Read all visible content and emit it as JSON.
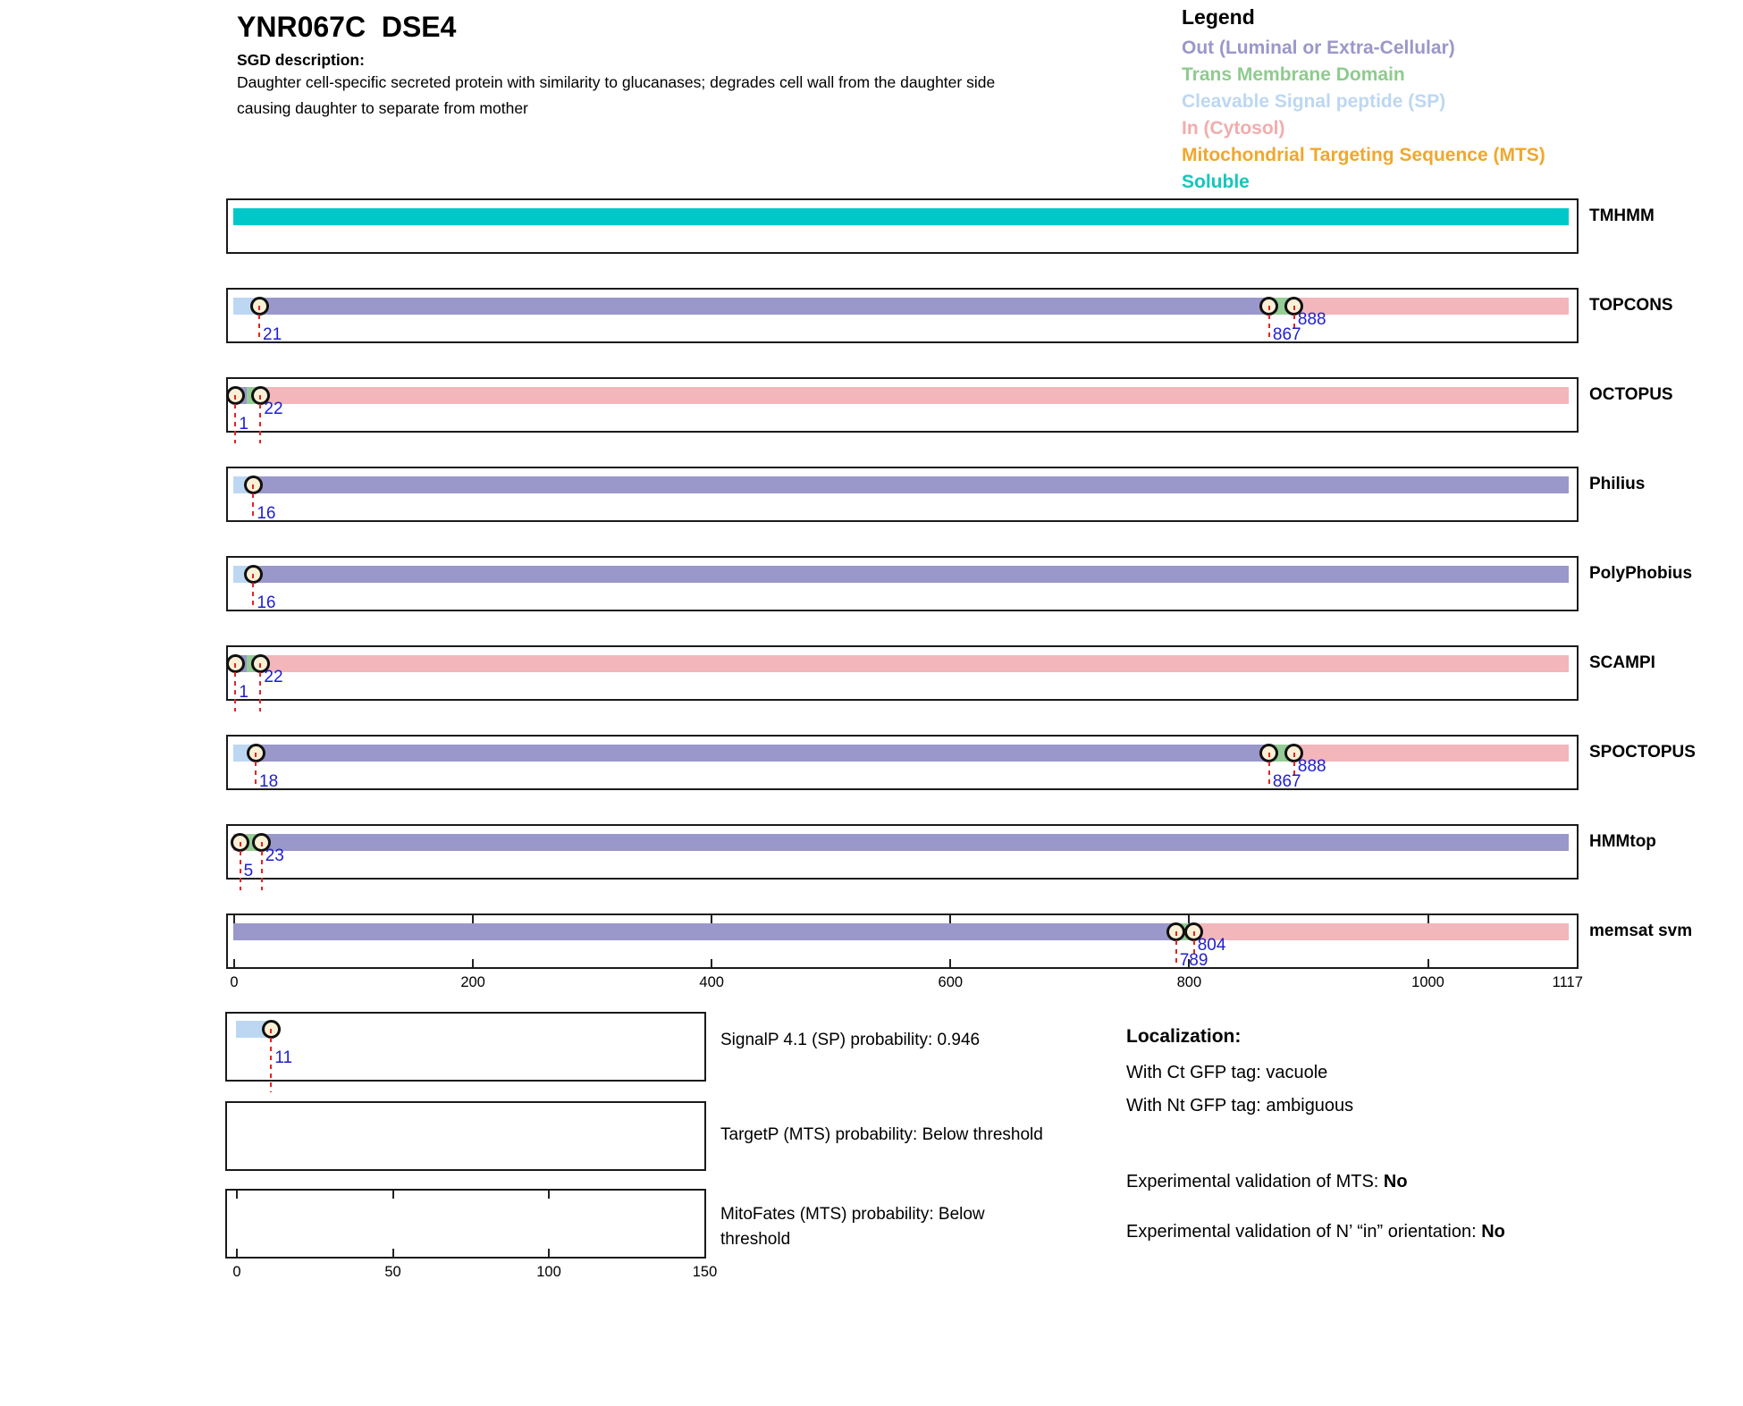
{
  "header": {
    "title": "YNR067C  DSE4",
    "sgd_label": "SGD description:",
    "description": "Daughter cell-specific secreted protein with similarity to glucanases; degrades cell wall from the daughter side causing daughter to separate from mother"
  },
  "legend": {
    "title": "Legend",
    "items": [
      {
        "key": "out",
        "label": "Out (Luminal or Extra-Cellular)",
        "color": "#9A97CB"
      },
      {
        "key": "tm",
        "label": "Trans Membrane Domain",
        "color": "#8FCB8F"
      },
      {
        "key": "sp",
        "label": "Cleavable Signal peptide (SP)",
        "color": "#BDD7F2"
      },
      {
        "key": "in",
        "label": "In (Cytosol)",
        "color": "#F2ACAC"
      },
      {
        "key": "mts",
        "label": "Mitochondrial Targeting Sequence (MTS)",
        "color": "#F0A72E"
      },
      {
        "key": "soluble",
        "label": "Soluble",
        "color": "#12C7BE"
      }
    ]
  },
  "chart_data": {
    "type": "bar",
    "subtype": "protein-topology-prediction-tracks",
    "protein_length": 1117,
    "x_axis": {
      "min": 0,
      "max": 1117,
      "ticks": [
        0,
        200,
        400,
        600,
        800,
        1000,
        1117
      ]
    },
    "region_colors": {
      "out": "#9A97CA",
      "tm": "#95CC95",
      "sp": "#BDD7F2",
      "in": "#F2B6BB",
      "mts": "#F0A72E",
      "soluble": "#00C8C8"
    },
    "tracks": [
      {
        "name": "TMHMM",
        "segments": [
          {
            "region": "soluble",
            "start": 0,
            "end": 1117
          }
        ],
        "markers": []
      },
      {
        "name": "TOPCONS",
        "segments": [
          {
            "region": "sp",
            "start": 0,
            "end": 21
          },
          {
            "region": "out",
            "start": 21,
            "end": 867
          },
          {
            "region": "tm",
            "start": 867,
            "end": 888
          },
          {
            "region": "in",
            "start": 888,
            "end": 1117
          }
        ],
        "markers": [
          {
            "pos": 21,
            "label": "21",
            "tier": "low",
            "line": "box"
          },
          {
            "pos": 867,
            "label": "867",
            "tier": "low",
            "line": "box"
          },
          {
            "pos": 888,
            "label": "888",
            "tier": "high",
            "line": "short"
          }
        ]
      },
      {
        "name": "OCTOPUS",
        "segments": [
          {
            "region": "out",
            "start": 0,
            "end": 1
          },
          {
            "region": "tm",
            "start": 1,
            "end": 22
          },
          {
            "region": "in",
            "start": 22,
            "end": 1117
          }
        ],
        "markers": [
          {
            "pos": 1,
            "label": "1",
            "tier": "low",
            "line": "below"
          },
          {
            "pos": 22,
            "label": "22",
            "tier": "high",
            "line": "below"
          }
        ]
      },
      {
        "name": "Philius",
        "segments": [
          {
            "region": "sp",
            "start": 0,
            "end": 16
          },
          {
            "region": "out",
            "start": 16,
            "end": 1117
          }
        ],
        "markers": [
          {
            "pos": 16,
            "label": "16",
            "tier": "low",
            "line": "box"
          }
        ]
      },
      {
        "name": "PolyPhobius",
        "segments": [
          {
            "region": "sp",
            "start": 0,
            "end": 16
          },
          {
            "region": "out",
            "start": 16,
            "end": 1117
          }
        ],
        "markers": [
          {
            "pos": 16,
            "label": "16",
            "tier": "low",
            "line": "box"
          }
        ]
      },
      {
        "name": "SCAMPI",
        "segments": [
          {
            "region": "out",
            "start": 0,
            "end": 1
          },
          {
            "region": "tm",
            "start": 1,
            "end": 22
          },
          {
            "region": "in",
            "start": 22,
            "end": 1117
          }
        ],
        "markers": [
          {
            "pos": 1,
            "label": "1",
            "tier": "low",
            "line": "below"
          },
          {
            "pos": 22,
            "label": "22",
            "tier": "high",
            "line": "below"
          }
        ]
      },
      {
        "name": "SPOCTOPUS",
        "segments": [
          {
            "region": "sp",
            "start": 0,
            "end": 18
          },
          {
            "region": "out",
            "start": 18,
            "end": 867
          },
          {
            "region": "tm",
            "start": 867,
            "end": 888
          },
          {
            "region": "in",
            "start": 888,
            "end": 1117
          }
        ],
        "markers": [
          {
            "pos": 18,
            "label": "18",
            "tier": "low",
            "line": "box"
          },
          {
            "pos": 867,
            "label": "867",
            "tier": "low",
            "line": "box"
          },
          {
            "pos": 888,
            "label": "888",
            "tier": "high",
            "line": "short"
          }
        ]
      },
      {
        "name": "HMMtop",
        "segments": [
          {
            "region": "in",
            "start": 0,
            "end": 5
          },
          {
            "region": "tm",
            "start": 5,
            "end": 23
          },
          {
            "region": "out",
            "start": 23,
            "end": 1117
          }
        ],
        "markers": [
          {
            "pos": 5,
            "label": "5",
            "tier": "low",
            "line": "below"
          },
          {
            "pos": 23,
            "label": "23",
            "tier": "high",
            "line": "below"
          }
        ]
      },
      {
        "name": "memsat svm",
        "box_ticks": [
          0,
          200,
          400,
          600,
          800,
          1000
        ],
        "segments": [
          {
            "region": "out",
            "start": 0,
            "end": 789
          },
          {
            "region": "tm",
            "start": 789,
            "end": 804
          },
          {
            "region": "in",
            "start": 804,
            "end": 1117
          }
        ],
        "markers": [
          {
            "pos": 789,
            "label": "789",
            "tier": "low",
            "line": "box"
          },
          {
            "pos": 804,
            "label": "804",
            "tier": "high",
            "line": "short"
          }
        ]
      }
    ],
    "bottom_plots": [
      {
        "name": "SignalP",
        "caption": "SignalP 4.1 (SP) probability: 0.946",
        "x_axis": {
          "min": 0,
          "max": 150,
          "ticks": [],
          "box_ticks": []
        },
        "segments": [
          {
            "region": "sp",
            "start": 0,
            "end": 11
          }
        ],
        "markers": [
          {
            "pos": 11,
            "label": "11",
            "tier": "low",
            "line": "below"
          }
        ]
      },
      {
        "name": "TargetP",
        "caption": "TargetP (MTS) probability: Below threshold",
        "x_axis": {
          "min": 0,
          "max": 150,
          "ticks": [],
          "box_ticks": []
        },
        "segments": [],
        "markers": []
      },
      {
        "name": "MitoFates",
        "caption": "MitoFates (MTS) probability: Below threshold",
        "x_axis": {
          "min": 0,
          "max": 150,
          "ticks": [
            0,
            50,
            100,
            150
          ],
          "box_ticks": [
            0,
            50,
            100
          ]
        },
        "segments": [],
        "markers": []
      }
    ]
  },
  "info": {
    "localization_title": "Localization:",
    "gfp_lines": [
      "With Ct GFP tag: vacuole",
      "With Nt GFP tag: ambiguous"
    ],
    "validation_lines": [
      {
        "prefix": "Experimental validation of MTS: ",
        "value": "No"
      },
      {
        "prefix": "Experimental validation of N’ “in” orientation: ",
        "value": "No"
      }
    ]
  },
  "styles": {
    "marker_label_color": "#1E1ED2",
    "dash_color": "#E62323",
    "circle_fill": "#FAF0D6",
    "box_border": "#1A1A1A"
  }
}
